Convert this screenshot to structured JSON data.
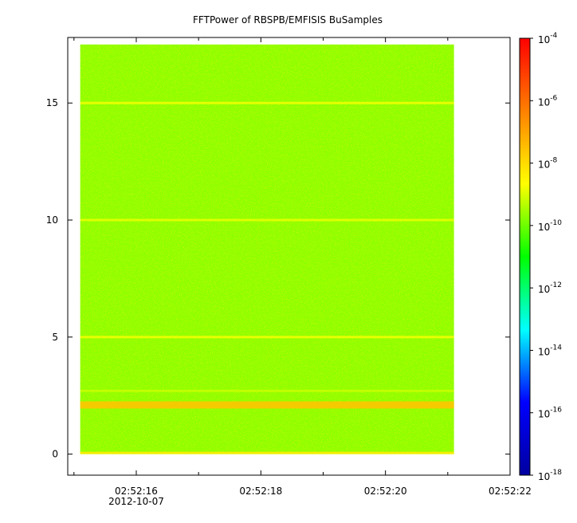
{
  "chart_data": {
    "type": "heatmap",
    "title": "FFTPower of RBSPB/EMFISIS  BuSamples",
    "xlabel": "",
    "ylabel": "",
    "x_axis": {
      "ticks": [
        {
          "label": "02:52:16",
          "value": 16
        },
        {
          "label": "02:52:18",
          "value": 18
        },
        {
          "label": "02:52:20",
          "value": 20
        },
        {
          "label": "02:52:22",
          "value": 22
        }
      ],
      "minor_tick_values": [
        15,
        17,
        19,
        21
      ],
      "date_label": "2012-10-07",
      "range_seconds": [
        14.9,
        22.0
      ],
      "data_extent_seconds": [
        15.1,
        21.1
      ]
    },
    "y_axis": {
      "range": [
        -0.9,
        17.8
      ],
      "ticks": [
        0,
        5,
        10,
        15
      ],
      "data_extent": [
        0,
        17.5
      ]
    },
    "colorbar": {
      "scale": "log",
      "range": [
        1e-18,
        0.0001
      ],
      "ticks": [
        {
          "base": "10",
          "exp": "-4"
        },
        {
          "base": "10",
          "exp": "-6"
        },
        {
          "base": "10",
          "exp": "-8"
        },
        {
          "base": "10",
          "exp": "-10"
        },
        {
          "base": "10",
          "exp": "-12"
        },
        {
          "base": "10",
          "exp": "-14"
        },
        {
          "base": "10",
          "exp": "-16"
        },
        {
          "base": "10",
          "exp": "-18"
        }
      ],
      "colors": [
        "#0000a0",
        "#0000ff",
        "#00ffff",
        "#00ff00",
        "#ffff00",
        "#ff8000",
        "#ff0000"
      ]
    },
    "background_level_log10": -10,
    "bright_bands": [
      {
        "y": 15.0,
        "log10_power": -8.8
      },
      {
        "y": 10.0,
        "log10_power": -8.9
      },
      {
        "y": 5.0,
        "log10_power": -8.8
      },
      {
        "y": 2.7,
        "log10_power": -9.2
      },
      {
        "y": 2.1,
        "log10_power": -7.6
      },
      {
        "y": 0.05,
        "log10_power": -8.3
      }
    ]
  }
}
